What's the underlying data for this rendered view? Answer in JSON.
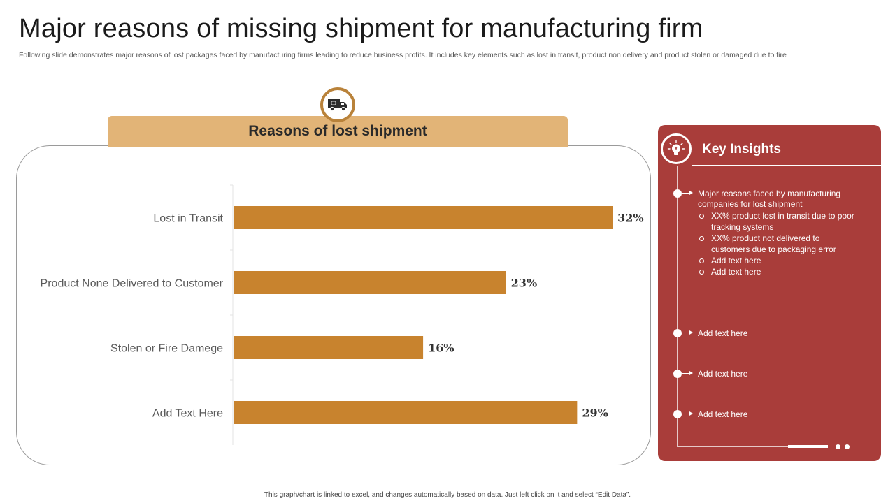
{
  "page": {
    "title": "Major reasons of missing shipment for manufacturing firm",
    "subtitle": "Following slide demonstrates major reasons of lost packages faced by manufacturing firms leading to reduce business profits. It includes key elements such as lost in transit, product non delivery and product stolen or damaged due to fire",
    "footnote": "This graph/chart is linked to excel, and changes automatically based on data. Just left click on it and select “Edit Data”."
  },
  "chart_header": {
    "title": "Reasons of lost shipment",
    "icon": "truck-icon"
  },
  "chart_data": {
    "type": "bar",
    "orientation": "horizontal",
    "title": "Reasons of lost shipment",
    "categories": [
      "Lost in Transit",
      "Product None Delivered to Customer",
      "Stolen or Fire Damege",
      "Add Text Here"
    ],
    "values": [
      32,
      23,
      16,
      29
    ],
    "value_labels": [
      "32%",
      "23%",
      "16%",
      "29%"
    ],
    "unit": "%",
    "xlim": [
      0,
      35
    ],
    "xlabel": "",
    "ylabel": "",
    "grid": false,
    "bar_color": "#c8832e"
  },
  "insights": {
    "title": "Key Insights",
    "icon": "lightbulb-icon",
    "accent_color": "#a93d3a",
    "items": [
      {
        "text": "Major reasons faced by manufacturing companies for lost shipment",
        "subitems": [
          "XX% product lost in transit due to poor tracking systems",
          "XX% product not delivered to customers due to packaging error",
          "Add text here",
          "Add text here"
        ]
      },
      {
        "text": "Add text here"
      },
      {
        "text": "Add text here"
      },
      {
        "text": "Add text here"
      }
    ]
  }
}
